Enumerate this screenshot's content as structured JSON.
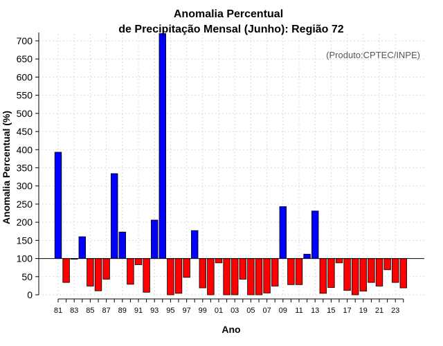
{
  "chart_data": {
    "type": "bar",
    "title": "Anomalia Percentual",
    "subtitle": "de Precipitação Mensal (Junho): Região 72",
    "xlabel": "Ano",
    "ylabel": "Anomalia Percentual (%)",
    "credit": "(Produto:CPTEC/INPE)",
    "ylim": [
      0,
      700
    ],
    "baseline": 100,
    "yticks": [
      0,
      50,
      100,
      150,
      200,
      250,
      300,
      350,
      400,
      450,
      500,
      550,
      600,
      650,
      700
    ],
    "grid": true,
    "categories": [
      "81",
      "82",
      "83",
      "84",
      "85",
      "86",
      "87",
      "88",
      "89",
      "90",
      "91",
      "92",
      "93",
      "94",
      "95",
      "96",
      "97",
      "98",
      "99",
      "00",
      "01",
      "02",
      "03",
      "04",
      "05",
      "06",
      "07",
      "08",
      "09",
      "10",
      "11",
      "12",
      "13",
      "14",
      "15",
      "16",
      "17",
      "18",
      "19",
      "20",
      "21",
      "22",
      "23",
      "24"
    ],
    "tick_labels": [
      "81",
      "83",
      "85",
      "87",
      "89",
      "91",
      "93",
      "95",
      "97",
      "99",
      "01",
      "03",
      "05",
      "07",
      "09",
      "11",
      "13",
      "15",
      "17",
      "19",
      "21",
      "23"
    ],
    "values": [
      393,
      34,
      99,
      160,
      24,
      11,
      43,
      334,
      173,
      29,
      83,
      7,
      206,
      720,
      0,
      4,
      48,
      177,
      19,
      0,
      88,
      0,
      0,
      43,
      0,
      0,
      5,
      24,
      243,
      28,
      28,
      112,
      231,
      4,
      20,
      88,
      12,
      0,
      10,
      34,
      24,
      69,
      34,
      19
    ],
    "colors": {
      "above": "#0000ff",
      "below": "#ff0000"
    }
  }
}
